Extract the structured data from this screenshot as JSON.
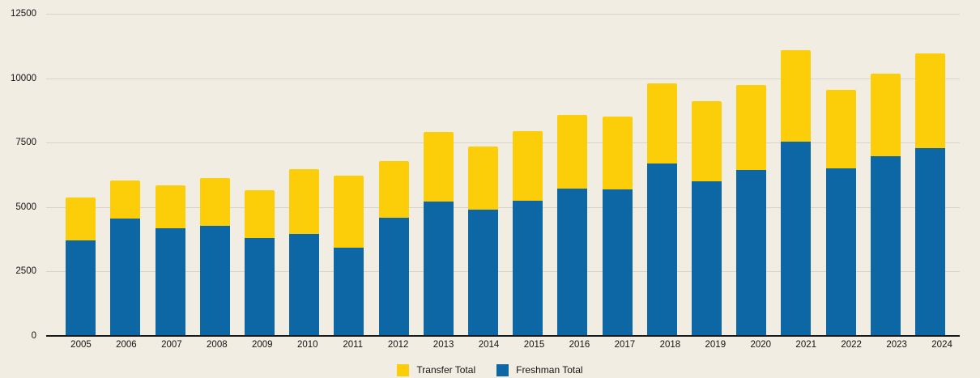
{
  "chart": {
    "background_color": "#f1ede2",
    "grid_color": "#d9d4c8",
    "axis_line_color": "#1a1a1a",
    "text_color": "#141414"
  },
  "chart_data": {
    "type": "bar",
    "stacked": true,
    "title": "",
    "xlabel": "",
    "ylabel": "",
    "categories": [
      "2005",
      "2006",
      "2007",
      "2008",
      "2009",
      "2010",
      "2011",
      "2012",
      "2013",
      "2014",
      "2015",
      "2016",
      "2017",
      "2018",
      "2019",
      "2020",
      "2021",
      "2022",
      "2023",
      "2024"
    ],
    "series": [
      {
        "name": "Transfer Total",
        "color": "#fcce0a",
        "values": [
          1640,
          1480,
          1690,
          1880,
          1880,
          2520,
          2810,
          2190,
          2680,
          2460,
          2680,
          2860,
          2830,
          3130,
          3130,
          3330,
          3580,
          3050,
          3210,
          3690
        ]
      },
      {
        "name": "Freshman Total",
        "color": "#0d67a4",
        "values": [
          3700,
          4550,
          4150,
          4240,
          3770,
          3950,
          3400,
          4570,
          5210,
          4870,
          5240,
          5700,
          5670,
          6670,
          5980,
          6410,
          7510,
          6500,
          6970,
          7280
        ]
      }
    ],
    "stack_totals": [
      5340,
      6030,
      5840,
      6120,
      5650,
      6470,
      6210,
      6760,
      7890,
      7330,
      7920,
      8560,
      8500,
      9800,
      9110,
      9740,
      11090,
      9550,
      10180,
      10970
    ],
    "stack_order_bottom_to_top": [
      "Freshman Total",
      "Transfer Total"
    ],
    "ylim": [
      0,
      12500
    ],
    "yticks": [
      0,
      2500,
      5000,
      7500,
      10000,
      12500
    ],
    "grid": true,
    "legend_position": "bottom"
  }
}
